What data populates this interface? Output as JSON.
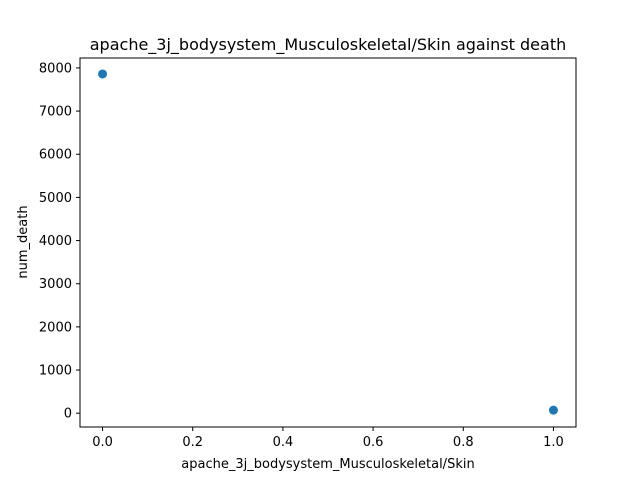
{
  "chart_data": {
    "type": "scatter",
    "title": "apache_3j_bodysystem_Musculoskeletal/Skin against death",
    "xlabel": "apache_3j_bodysystem_Musculoskeletal/Skin",
    "ylabel": "num_death",
    "xlim": [
      -0.05,
      1.05
    ],
    "ylim": [
      -320,
      8230
    ],
    "xticks": [
      "0.0",
      "0.2",
      "0.4",
      "0.6",
      "0.8",
      "1.0"
    ],
    "yticks": [
      "0",
      "1000",
      "2000",
      "3000",
      "4000",
      "5000",
      "6000",
      "7000",
      "8000"
    ],
    "points": [
      {
        "x": 0.0,
        "y": 7860
      },
      {
        "x": 1.0,
        "y": 70
      }
    ],
    "color": "#1f77b4",
    "grid": false
  }
}
